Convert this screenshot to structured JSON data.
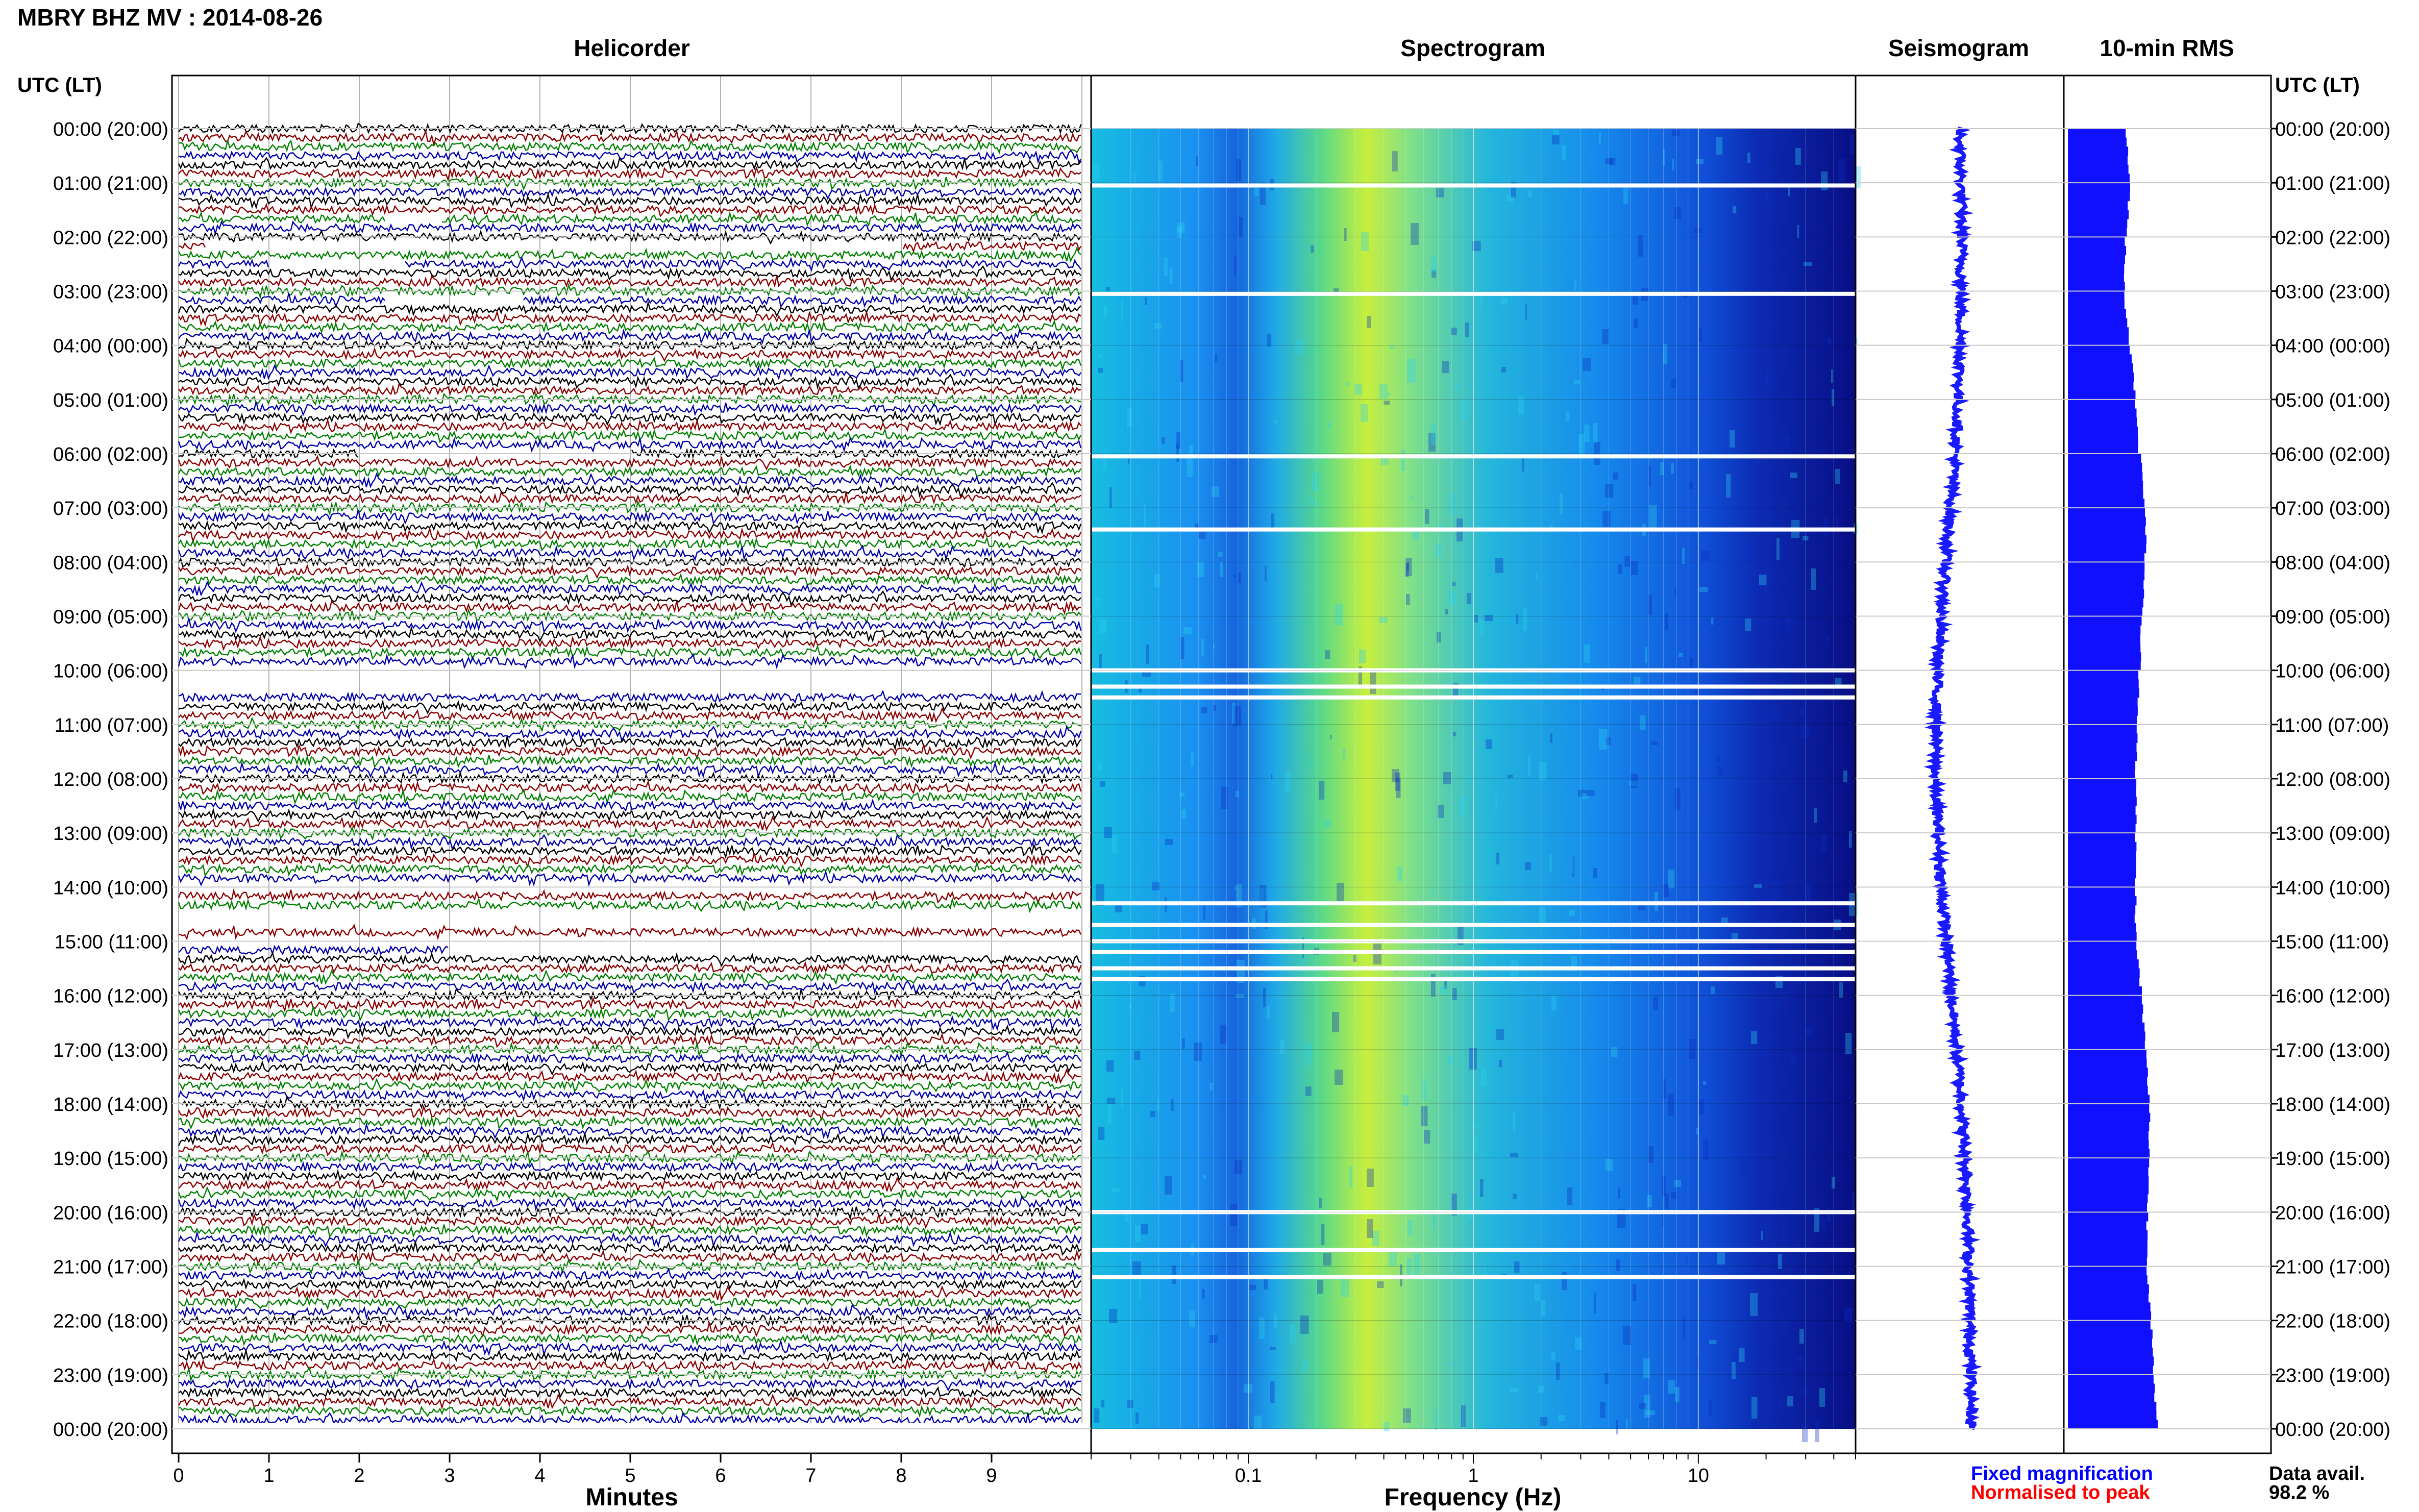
{
  "title": "MBRY BHZ MV : 2014-08-26",
  "panels": {
    "helicorder": "Helicorder",
    "spectrogram": "Spectrogram",
    "seismogram": "Seismogram",
    "rms": "10-min RMS"
  },
  "time_axis_label": "UTC (LT)",
  "time_labels": [
    "00:00 (20:00)",
    "01:00 (21:00)",
    "02:00 (22:00)",
    "03:00 (23:00)",
    "04:00 (00:00)",
    "05:00 (01:00)",
    "06:00 (02:00)",
    "07:00 (03:00)",
    "08:00 (04:00)",
    "09:00 (05:00)",
    "10:00 (06:00)",
    "11:00 (07:00)",
    "12:00 (08:00)",
    "13:00 (09:00)",
    "14:00 (10:00)",
    "15:00 (11:00)",
    "16:00 (12:00)",
    "17:00 (13:00)",
    "18:00 (14:00)",
    "19:00 (15:00)",
    "20:00 (16:00)",
    "21:00 (17:00)",
    "22:00 (18:00)",
    "23:00 (19:00)",
    "00:00 (20:00)"
  ],
  "minutes_axis": {
    "label": "Minutes",
    "ticks": [
      "0",
      "1",
      "2",
      "3",
      "4",
      "5",
      "6",
      "7",
      "8",
      "9"
    ]
  },
  "frequency_axis": {
    "label": "Frequency (Hz)",
    "ticks": [
      "0.1",
      "1",
      "10"
    ],
    "scale": "log"
  },
  "legend": {
    "fixed": {
      "text": "Fixed magnification",
      "color": "#0000ff"
    },
    "normalised": {
      "text": "Normalised to peak",
      "color": "#ff0000"
    }
  },
  "data_avail": {
    "label": "Data avail.",
    "value": "98.2 %"
  },
  "colors": {
    "trace_cycle": [
      "#000000",
      "#8b0000",
      "#008000",
      "#0000aa"
    ],
    "rms_bar": "#1010ff",
    "seismogram": "#1a1aff",
    "grid": "#c8c8c8"
  },
  "chart_data": [
    {
      "type": "line",
      "name": "helicorder",
      "x_unit": "minutes",
      "xlim": [
        0,
        10
      ],
      "rows": 144,
      "row_minutes": 10,
      "gaps": [
        {
          "row": 10,
          "from": 2.3,
          "to": 2.9
        },
        {
          "row": 13,
          "from": 0.3,
          "to": 8.0
        },
        {
          "row": 15,
          "from": 1.0,
          "to": 2.5
        },
        {
          "row": 19,
          "from": 2.3,
          "to": 3.8
        },
        {
          "row": 36,
          "from": 2.0,
          "to": 5.0
        },
        {
          "row": 60,
          "from": 0.0,
          "to": 10.0
        },
        {
          "row": 61,
          "from": 0.0,
          "to": 10.0
        },
        {
          "row": 62,
          "from": 0.0,
          "to": 10.0
        },
        {
          "row": 84,
          "from": 0.0,
          "to": 10.0
        },
        {
          "row": 87,
          "from": 0.0,
          "to": 10.0
        },
        {
          "row": 88,
          "from": 0.0,
          "to": 10.0
        },
        {
          "row": 90,
          "from": 0.0,
          "to": 10.0
        },
        {
          "row": 91,
          "from": 3.0,
          "to": 10.0
        }
      ]
    },
    {
      "type": "heatmap",
      "name": "spectrogram",
      "x_unit": "Hz",
      "xlim": [
        0.02,
        50
      ],
      "gaps_hours": [
        1.05,
        3.05,
        6.05,
        7.4,
        10.0,
        10.3,
        10.5,
        14.3,
        14.7,
        15.0,
        15.2,
        15.5,
        15.7,
        20.0,
        20.7,
        21.2
      ],
      "peak_band_hz": [
        0.25,
        0.6
      ]
    },
    {
      "type": "line",
      "name": "seismogram",
      "y_unit": "hours",
      "x_offsets": [
        0.0,
        0.05,
        0.02,
        -0.1,
        -0.35,
        -0.55,
        -0.6,
        -0.45,
        -0.2,
        0.05,
        0.2,
        0.25,
        0.3
      ]
    },
    {
      "type": "bar",
      "name": "rms",
      "orientation": "horizontal",
      "hours_knots": [
        0,
        1,
        2,
        3,
        4,
        5,
        6,
        7,
        8,
        9,
        10,
        11,
        12,
        13,
        14,
        15,
        16,
        17,
        18,
        19,
        20,
        21,
        22,
        23,
        24
      ],
      "relative_amplitude": [
        0.3,
        0.32,
        0.3,
        0.29,
        0.32,
        0.35,
        0.37,
        0.4,
        0.4,
        0.38,
        0.37,
        0.36,
        0.35,
        0.35,
        0.35,
        0.35,
        0.38,
        0.4,
        0.42,
        0.42,
        0.41,
        0.41,
        0.43,
        0.44,
        0.46
      ],
      "xlim": [
        0,
        1
      ]
    }
  ]
}
